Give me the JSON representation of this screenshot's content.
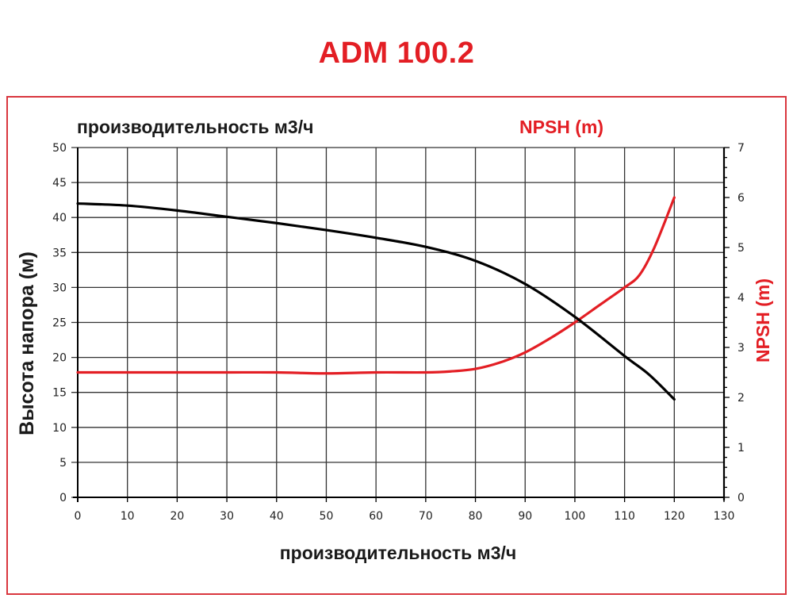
{
  "title": "ADM 100.2",
  "colors": {
    "accent": "#e31e24",
    "frame": "#d9363e",
    "head_curve": "#000000",
    "npsh_curve": "#e31e24",
    "grid": "#333333"
  },
  "top_labels": {
    "left": "производительность м3/ч",
    "right": "NPSH (m)"
  },
  "chart_data": {
    "type": "line",
    "title": "ADM 100.2",
    "xlabel": "производительность м3/ч",
    "ylabel": "Высота напора (м)",
    "y2label": "NPSH (m)",
    "xlim": [
      0,
      130
    ],
    "ylim": [
      0,
      50
    ],
    "y2lim": [
      0,
      7
    ],
    "grid": true,
    "x_ticks": [
      0,
      10,
      20,
      30,
      40,
      50,
      60,
      70,
      80,
      90,
      100,
      110,
      120,
      130
    ],
    "y_ticks": [
      0,
      5,
      10,
      15,
      20,
      25,
      30,
      35,
      40,
      45,
      50
    ],
    "y2_ticks": [
      0,
      1,
      2,
      3,
      4,
      5,
      6,
      7
    ],
    "series": [
      {
        "name": "Высота напора (м)",
        "axis": "left",
        "color": "#000000",
        "x": [
          0,
          10,
          20,
          30,
          40,
          50,
          60,
          70,
          80,
          90,
          100,
          110,
          115,
          120
        ],
        "values": [
          42,
          41.7,
          41,
          40.1,
          39.2,
          38.2,
          37.1,
          35.8,
          33.8,
          30.5,
          25.8,
          20.2,
          17.5,
          14
        ]
      },
      {
        "name": "NPSH (m)",
        "axis": "right",
        "color": "#e31e24",
        "x": [
          0,
          10,
          20,
          30,
          40,
          50,
          60,
          70,
          75,
          80,
          85,
          90,
          95,
          100,
          105,
          110,
          113,
          116,
          120
        ],
        "values": [
          2.5,
          2.5,
          2.5,
          2.5,
          2.5,
          2.48,
          2.5,
          2.5,
          2.52,
          2.57,
          2.7,
          2.9,
          3.18,
          3.5,
          3.85,
          4.2,
          4.45,
          5.0,
          6.0
        ]
      }
    ]
  }
}
